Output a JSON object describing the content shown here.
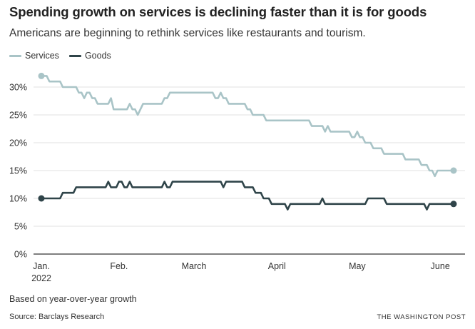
{
  "header": {
    "title": "Spending growth on services is declining faster than it is for goods",
    "subtitle": "Americans are beginning to rethink services like restaurants and tourism."
  },
  "footer": {
    "note": "Based on year-over-year growth",
    "source": "Source: Barclays Research",
    "credit": "THE WASHINGTON POST"
  },
  "colors": {
    "services": "#a9c4c7",
    "goods": "#2f4449",
    "grid": "#e2e2e2",
    "axis": "#333333"
  },
  "chart_data": {
    "type": "line",
    "title": "Spending growth on services is declining faster than it is for goods",
    "subtitle": "Americans are beginning to rethink services like restaurants and tourism.",
    "xlabel": "",
    "ylabel": "",
    "x_range": [
      "2022-01-03",
      "2022-06-06"
    ],
    "ylim": [
      0,
      30
    ],
    "yticks": [
      0,
      5,
      10,
      15,
      20,
      25,
      30
    ],
    "ytick_labels": [
      "0%",
      "5%",
      "10%",
      "15%",
      "20%",
      "25%",
      "30%"
    ],
    "xticks": [
      {
        "date": "2022-01-03",
        "label": "Jan.",
        "sub": "2022"
      },
      {
        "date": "2022-02-01",
        "label": "Feb.",
        "sub": ""
      },
      {
        "date": "2022-03-01",
        "label": "March",
        "sub": ""
      },
      {
        "date": "2022-04-01",
        "label": "April",
        "sub": ""
      },
      {
        "date": "2022-05-01",
        "label": "May",
        "sub": ""
      },
      {
        "date": "2022-06-01",
        "label": "June",
        "sub": ""
      }
    ],
    "grid": true,
    "legend": "top-left",
    "series": [
      {
        "name": "Services",
        "color": "#a9c4c7",
        "points": [
          [
            "2022-01-03",
            32
          ],
          [
            "2022-01-05",
            32
          ],
          [
            "2022-01-06",
            31
          ],
          [
            "2022-01-10",
            31
          ],
          [
            "2022-01-11",
            30
          ],
          [
            "2022-01-16",
            30
          ],
          [
            "2022-01-17",
            29
          ],
          [
            "2022-01-18",
            29
          ],
          [
            "2022-01-19",
            28
          ],
          [
            "2022-01-20",
            29
          ],
          [
            "2022-01-21",
            29
          ],
          [
            "2022-01-22",
            28
          ],
          [
            "2022-01-23",
            28
          ],
          [
            "2022-01-24",
            27
          ],
          [
            "2022-01-28",
            27
          ],
          [
            "2022-01-29",
            28
          ],
          [
            "2022-01-30",
            26
          ],
          [
            "2022-02-04",
            26
          ],
          [
            "2022-02-05",
            27
          ],
          [
            "2022-02-06",
            26
          ],
          [
            "2022-02-07",
            26
          ],
          [
            "2022-02-08",
            25
          ],
          [
            "2022-02-10",
            27
          ],
          [
            "2022-02-17",
            27
          ],
          [
            "2022-02-18",
            28
          ],
          [
            "2022-02-19",
            28
          ],
          [
            "2022-02-20",
            29
          ],
          [
            "2022-03-08",
            29
          ],
          [
            "2022-03-09",
            28
          ],
          [
            "2022-03-10",
            28
          ],
          [
            "2022-03-11",
            29
          ],
          [
            "2022-03-12",
            28
          ],
          [
            "2022-03-13",
            28
          ],
          [
            "2022-03-14",
            27
          ],
          [
            "2022-03-20",
            27
          ],
          [
            "2022-03-21",
            26
          ],
          [
            "2022-03-22",
            26
          ],
          [
            "2022-03-23",
            25
          ],
          [
            "2022-03-27",
            25
          ],
          [
            "2022-03-28",
            24
          ],
          [
            "2022-04-13",
            24
          ],
          [
            "2022-04-14",
            23
          ],
          [
            "2022-04-18",
            23
          ],
          [
            "2022-04-19",
            22
          ],
          [
            "2022-04-20",
            23
          ],
          [
            "2022-04-21",
            22
          ],
          [
            "2022-04-28",
            22
          ],
          [
            "2022-04-29",
            21
          ],
          [
            "2022-04-30",
            21
          ],
          [
            "2022-05-01",
            22
          ],
          [
            "2022-05-02",
            21
          ],
          [
            "2022-05-03",
            21
          ],
          [
            "2022-05-04",
            20
          ],
          [
            "2022-05-06",
            20
          ],
          [
            "2022-05-07",
            19
          ],
          [
            "2022-05-10",
            19
          ],
          [
            "2022-05-11",
            18
          ],
          [
            "2022-05-18",
            18
          ],
          [
            "2022-05-19",
            17
          ],
          [
            "2022-05-24",
            17
          ],
          [
            "2022-05-25",
            16
          ],
          [
            "2022-05-27",
            16
          ],
          [
            "2022-05-28",
            15
          ],
          [
            "2022-05-29",
            15
          ],
          [
            "2022-05-30",
            14
          ],
          [
            "2022-05-31",
            15
          ],
          [
            "2022-06-06",
            15
          ]
        ]
      },
      {
        "name": "Goods",
        "color": "#2f4449",
        "points": [
          [
            "2022-01-03",
            10
          ],
          [
            "2022-01-10",
            10
          ],
          [
            "2022-01-11",
            11
          ],
          [
            "2022-01-15",
            11
          ],
          [
            "2022-01-16",
            12
          ],
          [
            "2022-01-27",
            12
          ],
          [
            "2022-01-28",
            13
          ],
          [
            "2022-01-29",
            12
          ],
          [
            "2022-01-31",
            12
          ],
          [
            "2022-02-01",
            13
          ],
          [
            "2022-02-02",
            13
          ],
          [
            "2022-02-03",
            12
          ],
          [
            "2022-02-04",
            12
          ],
          [
            "2022-02-05",
            13
          ],
          [
            "2022-02-06",
            12
          ],
          [
            "2022-02-17",
            12
          ],
          [
            "2022-02-18",
            13
          ],
          [
            "2022-02-19",
            12
          ],
          [
            "2022-02-20",
            12
          ],
          [
            "2022-02-21",
            13
          ],
          [
            "2022-03-11",
            13
          ],
          [
            "2022-03-12",
            12
          ],
          [
            "2022-03-13",
            13
          ],
          [
            "2022-03-19",
            13
          ],
          [
            "2022-03-20",
            12
          ],
          [
            "2022-03-23",
            12
          ],
          [
            "2022-03-24",
            11
          ],
          [
            "2022-03-26",
            11
          ],
          [
            "2022-03-27",
            10
          ],
          [
            "2022-03-29",
            10
          ],
          [
            "2022-03-30",
            9
          ],
          [
            "2022-04-04",
            9
          ],
          [
            "2022-04-05",
            8
          ],
          [
            "2022-04-06",
            9
          ],
          [
            "2022-04-17",
            9
          ],
          [
            "2022-04-18",
            10
          ],
          [
            "2022-04-19",
            9
          ],
          [
            "2022-05-04",
            9
          ],
          [
            "2022-05-05",
            10
          ],
          [
            "2022-05-11",
            10
          ],
          [
            "2022-05-12",
            9
          ],
          [
            "2022-05-26",
            9
          ],
          [
            "2022-05-27",
            8
          ],
          [
            "2022-05-28",
            9
          ],
          [
            "2022-06-06",
            9
          ]
        ]
      }
    ]
  }
}
